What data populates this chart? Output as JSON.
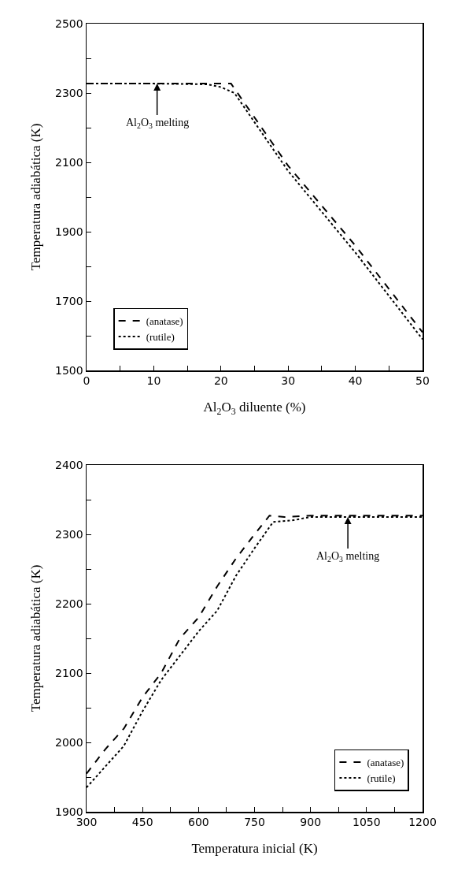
{
  "chart_data": [
    {
      "type": "line",
      "xlabel": "Al$_{2}$O$_{3}$ diluente (%)",
      "ylabel": "Temperatura adiabática (K)",
      "xlim": [
        0,
        50
      ],
      "xticks": [
        0,
        {
          "value": 5,
          "label": null
        },
        10,
        {
          "value": 15,
          "label": null
        },
        20,
        {
          "value": 25,
          "label": null
        },
        30,
        {
          "value": 35,
          "label": null
        },
        40,
        {
          "value": 45,
          "label": null
        },
        50
      ],
      "ylim": [
        1500,
        2500
      ],
      "yticks": [
        1500,
        {
          "value": 1600,
          "label": null
        },
        1700,
        {
          "value": 1800,
          "label": null
        },
        1900,
        {
          "value": 2000,
          "label": null
        },
        2100,
        {
          "value": 2200,
          "label": null
        },
        2300,
        {
          "value": 2400,
          "label": null
        },
        2500
      ],
      "grid": false,
      "legend": "bottom left",
      "marker": "none",
      "series": [
        {
          "name": "(anatase)",
          "color": "#000000",
          "line_style": "dashed",
          "x": [
            0,
            10,
            21.5,
            30,
            40,
            50
          ],
          "values": [
            2327,
            2327,
            2327,
            2090,
            1860,
            1610
          ]
        },
        {
          "name": "(rutile)",
          "color": "#000000",
          "line_style": "dotted",
          "x": [
            0,
            10,
            18,
            20,
            22,
            30,
            40,
            50
          ],
          "values": [
            2327,
            2327,
            2325,
            2317,
            2300,
            2075,
            1840,
            1590
          ]
        }
      ],
      "annotations": [
        {
          "text": "Al$_{2}$O$_{3}$ melting",
          "x": 10.5,
          "y": 2327
        }
      ]
    },
    {
      "type": "line",
      "xlabel": "Temperatura inicial (K)",
      "ylabel": "Temperatura adiabática (K)",
      "xlim": [
        300,
        1200
      ],
      "xticks": [
        300,
        {
          "value": 375,
          "label": null
        },
        450,
        {
          "value": 525,
          "label": null
        },
        600,
        {
          "value": 675,
          "label": null
        },
        750,
        {
          "value": 825,
          "label": null
        },
        900,
        {
          "value": 975,
          "label": null
        },
        1050,
        {
          "value": 1125,
          "label": null
        },
        1200
      ],
      "ylim": [
        1900,
        2400
      ],
      "yticks": [
        1900,
        {
          "value": 1950,
          "label": null
        },
        2000,
        {
          "value": 2050,
          "label": null
        },
        2100,
        {
          "value": 2150,
          "label": null
        },
        2200,
        {
          "value": 2250,
          "label": null
        },
        2300,
        {
          "value": 2350,
          "label": null
        },
        2400
      ],
      "grid": false,
      "legend": "bottom right",
      "marker": "none",
      "series": [
        {
          "name": "(anatase)",
          "color": "#000000",
          "line_style": "dashed",
          "x": [
            300,
            350,
            400,
            450,
            500,
            550,
            600,
            650,
            700,
            750,
            790,
            830,
            900,
            1200
          ],
          "values": [
            1955,
            1990,
            2020,
            2065,
            2100,
            2150,
            2180,
            2225,
            2265,
            2300,
            2327,
            2325,
            2327,
            2327
          ]
        },
        {
          "name": "(rutile)",
          "color": "#000000",
          "line_style": "dotted",
          "x": [
            300,
            350,
            400,
            450,
            500,
            550,
            600,
            650,
            700,
            750,
            800,
            850,
            900,
            1200
          ],
          "values": [
            1935,
            1965,
            1995,
            2045,
            2090,
            2125,
            2160,
            2190,
            2240,
            2280,
            2318,
            2320,
            2325,
            2325
          ]
        }
      ],
      "annotations": [
        {
          "text": "Al$_{2}$O$_{3}$ melting",
          "x": 1000,
          "y": 2325
        }
      ]
    }
  ]
}
